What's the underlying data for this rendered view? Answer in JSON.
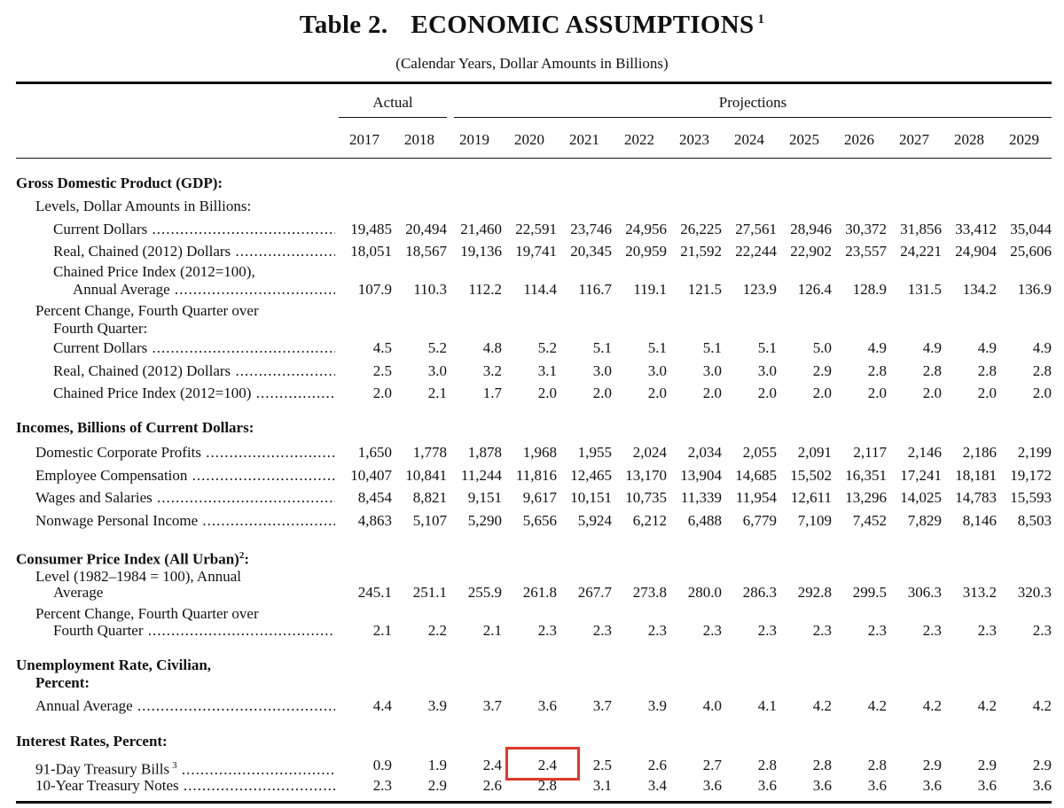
{
  "title": {
    "prefix": "Table 2.",
    "text": "ECONOMIC ASSUMPTIONS",
    "footnote": "1"
  },
  "subtitle": "(Calendar Years, Dollar Amounts in Billions)",
  "header": {
    "actual": "Actual",
    "projections": "Projections",
    "years": [
      "2017",
      "2018",
      "2019",
      "2020",
      "2021",
      "2022",
      "2023",
      "2024",
      "2025",
      "2026",
      "2027",
      "2028",
      "2029"
    ]
  },
  "gdp": {
    "heading": "Gross Domestic Product (GDP):",
    "levels": "Levels, Dollar Amounts in Billions:",
    "current_dollars": {
      "label": "Current Dollars",
      "values": [
        "19,485",
        "20,494",
        "21,460",
        "22,591",
        "23,746",
        "24,956",
        "26,225",
        "27,561",
        "28,946",
        "30,372",
        "31,856",
        "33,412",
        "35,044"
      ]
    },
    "real_chained": {
      "label": "Real, Chained (2012) Dollars",
      "values": [
        "18,051",
        "18,567",
        "19,136",
        "19,741",
        "20,345",
        "20,959",
        "21,592",
        "22,244",
        "22,902",
        "23,557",
        "24,221",
        "24,904",
        "25,606"
      ]
    },
    "price_index": {
      "label1": "Chained Price Index (2012=100),",
      "label2": "Annual Average",
      "values": [
        "107.9",
        "110.3",
        "112.2",
        "114.4",
        "116.7",
        "119.1",
        "121.5",
        "123.9",
        "126.4",
        "128.9",
        "131.5",
        "134.2",
        "136.9"
      ]
    },
    "pct_change": {
      "label1": "Percent Change, Fourth Quarter over",
      "label2": "Fourth Quarter:"
    },
    "pct_current": {
      "label": "Current Dollars",
      "values": [
        "4.5",
        "5.2",
        "4.8",
        "5.2",
        "5.1",
        "5.1",
        "5.1",
        "5.1",
        "5.0",
        "4.9",
        "4.9",
        "4.9",
        "4.9"
      ]
    },
    "pct_real": {
      "label": "Real, Chained (2012) Dollars",
      "values": [
        "2.5",
        "3.0",
        "3.2",
        "3.1",
        "3.0",
        "3.0",
        "3.0",
        "3.0",
        "2.9",
        "2.8",
        "2.8",
        "2.8",
        "2.8"
      ]
    },
    "pct_price": {
      "label": "Chained Price Index (2012=100)",
      "values": [
        "2.0",
        "2.1",
        "1.7",
        "2.0",
        "2.0",
        "2.0",
        "2.0",
        "2.0",
        "2.0",
        "2.0",
        "2.0",
        "2.0",
        "2.0"
      ]
    }
  },
  "incomes": {
    "heading": "Incomes, Billions of Current Dollars:",
    "corporate_profits": {
      "label": "Domestic Corporate Profits",
      "values": [
        "1,650",
        "1,778",
        "1,878",
        "1,968",
        "1,955",
        "2,024",
        "2,034",
        "2,055",
        "2,091",
        "2,117",
        "2,146",
        "2,186",
        "2,199"
      ]
    },
    "employee_comp": {
      "label": "Employee Compensation",
      "values": [
        "10,407",
        "10,841",
        "11,244",
        "11,816",
        "12,465",
        "13,170",
        "13,904",
        "14,685",
        "15,502",
        "16,351",
        "17,241",
        "18,181",
        "19,172"
      ]
    },
    "wages": {
      "label": "Wages and Salaries",
      "values": [
        "8,454",
        "8,821",
        "9,151",
        "9,617",
        "10,151",
        "10,735",
        "11,339",
        "11,954",
        "12,611",
        "13,296",
        "14,025",
        "14,783",
        "15,593"
      ]
    },
    "nonwage": {
      "label": "Nonwage Personal Income",
      "values": [
        "4,863",
        "5,107",
        "5,290",
        "5,656",
        "5,924",
        "6,212",
        "6,488",
        "6,779",
        "7,109",
        "7,452",
        "7,829",
        "8,146",
        "8,503"
      ]
    }
  },
  "cpi": {
    "heading": "Consumer Price Index (All Urban)",
    "footnote": "2",
    "colon": ":",
    "level": {
      "label1": "Level (1982–1984 = 100), Annual",
      "label2": "Average",
      "values": [
        "245.1",
        "251.1",
        "255.9",
        "261.8",
        "267.7",
        "273.8",
        "280.0",
        "286.3",
        "292.8",
        "299.5",
        "306.3",
        "313.2",
        "320.3"
      ]
    },
    "pct": {
      "label1": "Percent Change, Fourth Quarter over",
      "label2": "Fourth Quarter",
      "values": [
        "2.1",
        "2.2",
        "2.1",
        "2.3",
        "2.3",
        "2.3",
        "2.3",
        "2.3",
        "2.3",
        "2.3",
        "2.3",
        "2.3",
        "2.3"
      ]
    }
  },
  "unemployment": {
    "heading1": "Unemployment Rate, Civilian,",
    "heading2": "Percent:",
    "annual": {
      "label": "Annual Average",
      "values": [
        "4.4",
        "3.9",
        "3.7",
        "3.6",
        "3.7",
        "3.9",
        "4.0",
        "4.1",
        "4.2",
        "4.2",
        "4.2",
        "4.2",
        "4.2"
      ]
    }
  },
  "interest": {
    "heading": "Interest Rates, Percent:",
    "tbills": {
      "label": "91-Day Treasury Bills",
      "footnote": "3",
      "values": [
        "0.9",
        "1.9",
        "2.4",
        "2.4",
        "2.5",
        "2.6",
        "2.7",
        "2.8",
        "2.8",
        "2.8",
        "2.9",
        "2.9",
        "2.9"
      ]
    },
    "tnotes": {
      "label": "10-Year Treasury Notes",
      "values": [
        "2.3",
        "2.9",
        "2.6",
        "2.8",
        "3.1",
        "3.4",
        "3.6",
        "3.6",
        "3.6",
        "3.6",
        "3.6",
        "3.6",
        "3.6"
      ]
    }
  },
  "highlight_color": "#e0392b"
}
